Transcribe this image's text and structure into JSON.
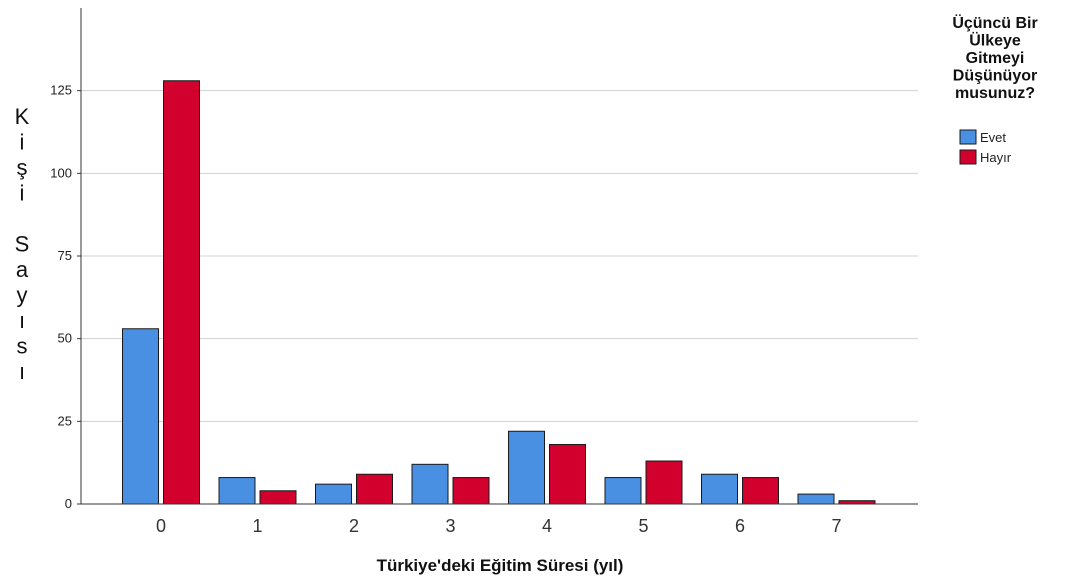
{
  "chart_data": {
    "type": "bar",
    "title": "",
    "xlabel": "Türkiye'deki Eğitim Süresi (yıl)",
    "ylabel": "Kişi Sayısı",
    "categories": [
      "0",
      "1",
      "2",
      "3",
      "4",
      "5",
      "6",
      "7"
    ],
    "series": [
      {
        "name": "Evet",
        "color": "#4a90e2",
        "values": [
          53,
          8,
          6,
          12,
          22,
          8,
          9,
          3
        ]
      },
      {
        "name": "Hayır",
        "color": "#d1002c",
        "values": [
          128,
          4,
          9,
          8,
          18,
          13,
          8,
          1
        ]
      }
    ],
    "ylim": [
      0,
      150
    ],
    "yticks": [
      0,
      25,
      50,
      75,
      100,
      125
    ],
    "grid": true,
    "legend": {
      "title": "Üçüncü Bir Ülkeye Gitmeyi Düşünüyor musunuz?",
      "title_lines": [
        "Üçüncü Bir",
        "Ülkeye",
        "Gitmeyi",
        "Düşünüyor",
        "musunuz?"
      ],
      "position": "right"
    }
  }
}
